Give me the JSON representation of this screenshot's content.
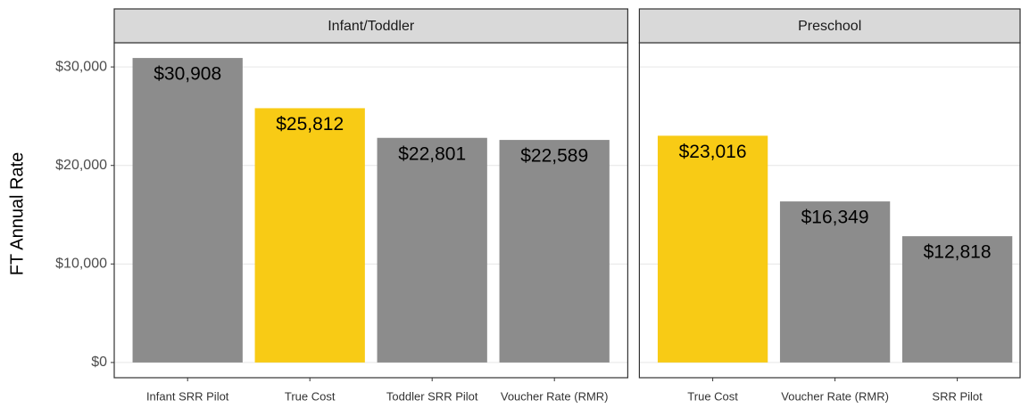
{
  "chart_data": [
    {
      "type": "bar",
      "title": "Infant/Toddler",
      "ylabel": "FT Annual Rate",
      "categories": [
        "Infant SRR Pilot",
        "True Cost",
        "Toddler SRR Pilot",
        "Voucher Rate (RMR)"
      ],
      "values": [
        30908,
        25812,
        22801,
        22589
      ],
      "value_labels": [
        "$30,908",
        "$25,812",
        "$22,801",
        "$22,589"
      ],
      "colors": [
        "#8c8c8c",
        "#f8cb15",
        "#8c8c8c",
        "#8c8c8c"
      ],
      "ylim": [
        -1545,
        32453
      ],
      "yticks": [
        {
          "value": 0,
          "label": "$0"
        },
        {
          "value": 10000,
          "label": "$10,000"
        },
        {
          "value": 20000,
          "label": "$20,000"
        },
        {
          "value": 30000,
          "label": "$30,000"
        }
      ],
      "grid": true
    },
    {
      "type": "bar",
      "title": "Preschool",
      "categories": [
        "True Cost",
        "Voucher Rate (RMR)",
        "SRR Pilot"
      ],
      "values": [
        23016,
        16349,
        12818
      ],
      "value_labels": [
        "$23,016",
        "$16,349",
        "$12,818"
      ],
      "colors": [
        "#f8cb15",
        "#8c8c8c",
        "#8c8c8c"
      ],
      "grid": true
    }
  ]
}
